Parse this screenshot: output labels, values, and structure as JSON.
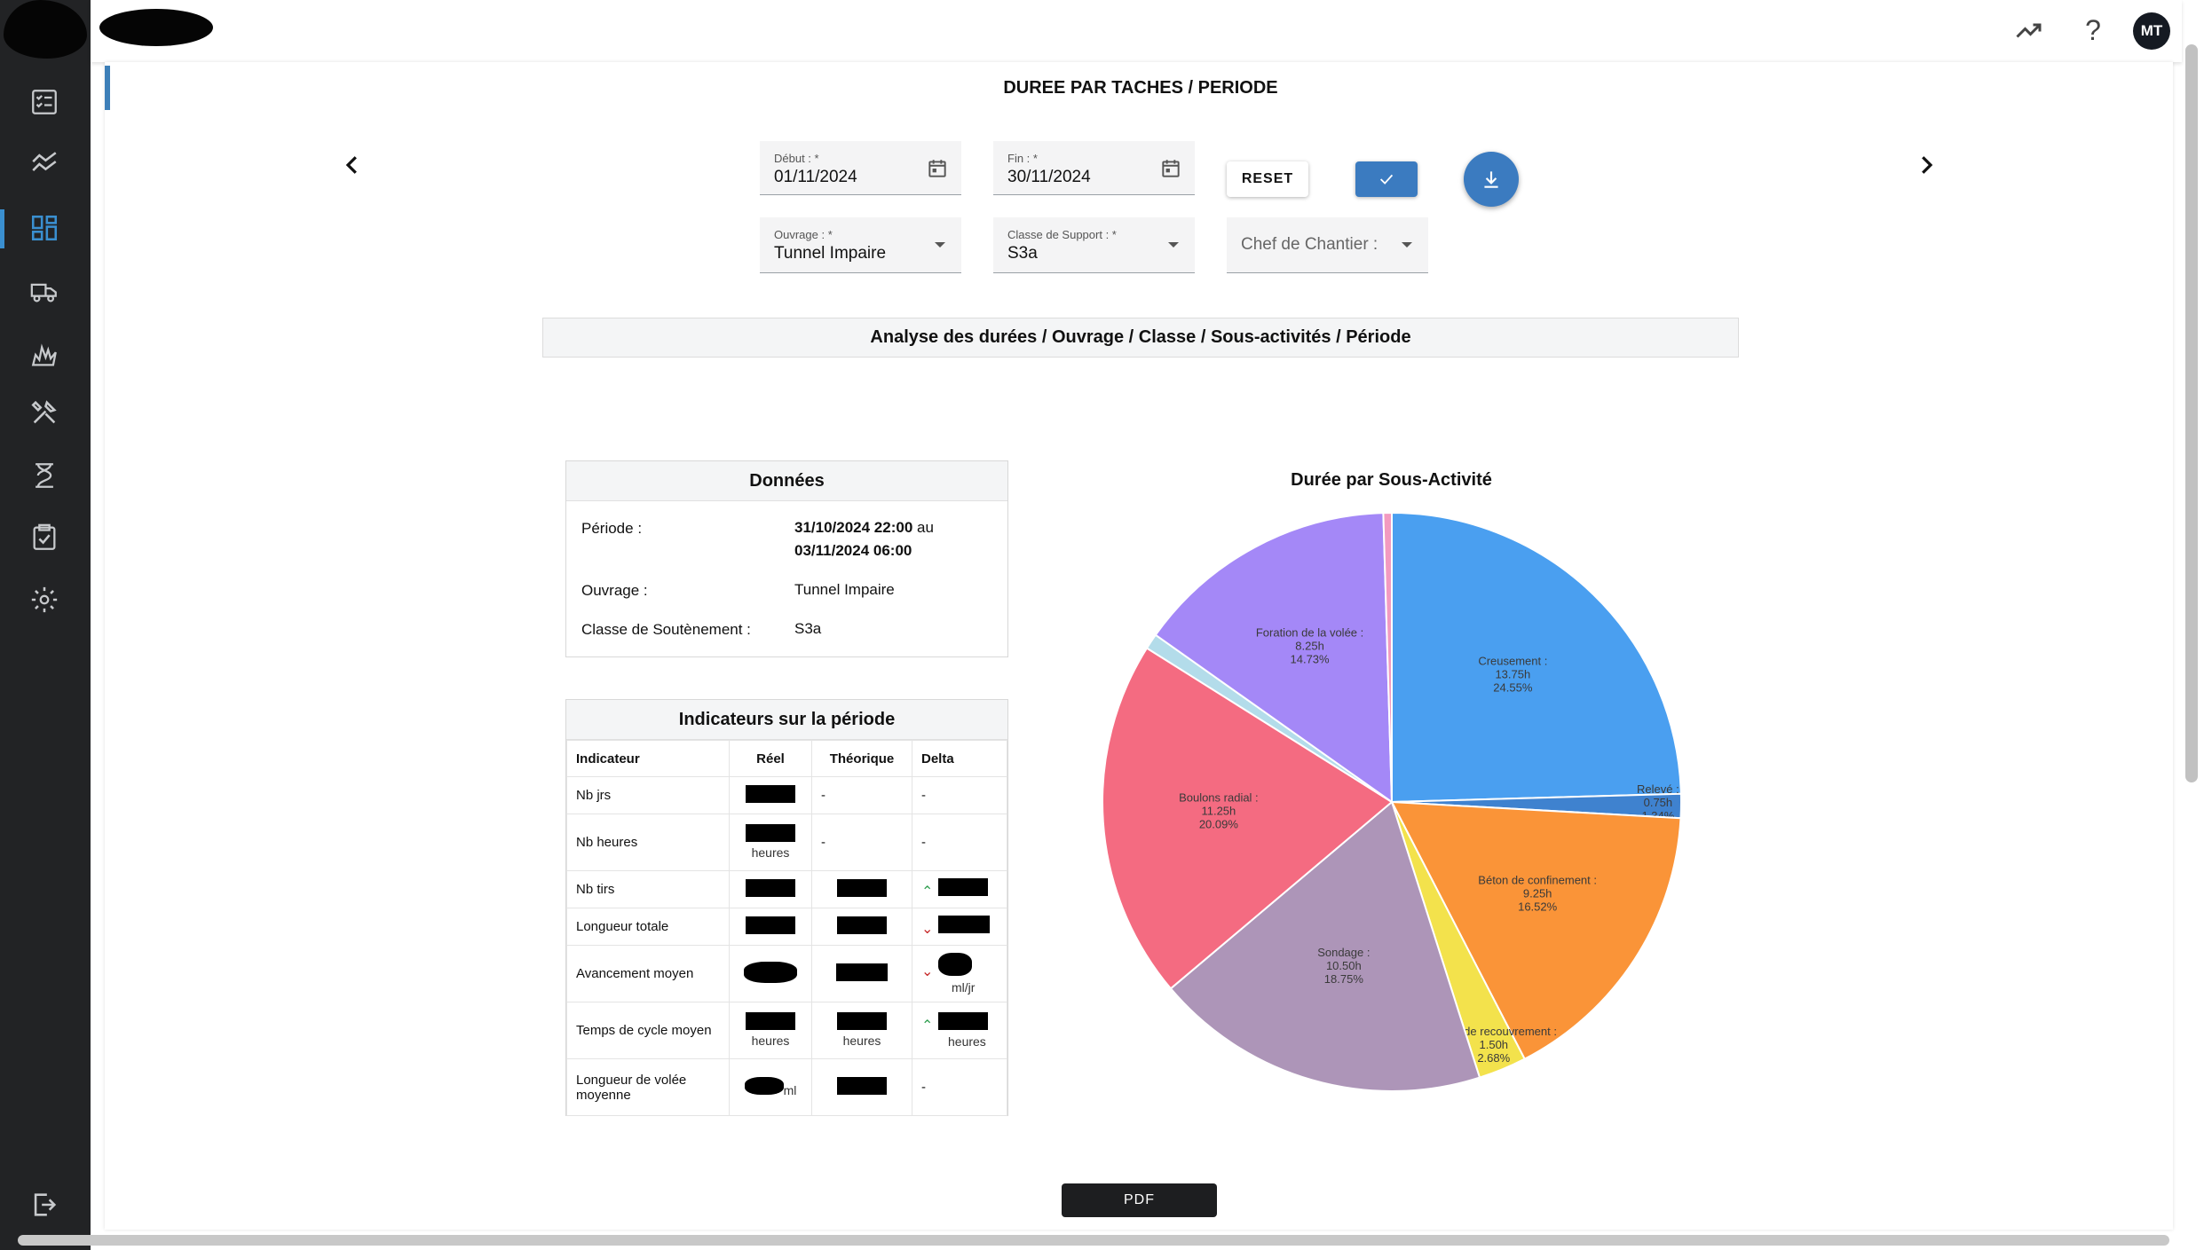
{
  "header": {
    "avatar_initials": "MT"
  },
  "sidebar": {
    "items": [
      {
        "icon": "checklist-icon"
      },
      {
        "icon": "trend-lines-icon"
      },
      {
        "icon": "dashboard-grid-icon"
      },
      {
        "icon": "truck-icon"
      },
      {
        "icon": "explosion-icon"
      },
      {
        "icon": "tools-icon"
      },
      {
        "icon": "hourglass-icon"
      },
      {
        "icon": "clipboard-check-icon"
      },
      {
        "icon": "gear-icon"
      }
    ],
    "active_index": 2,
    "logout_icon": "logout-icon"
  },
  "page": {
    "title": "DUREE PAR TACHES / PERIODE"
  },
  "filters": {
    "debut_label": "Début : *",
    "debut_value": "01/11/2024",
    "fin_label": "Fin : *",
    "fin_value": "30/11/2024",
    "ouvrage_label": "Ouvrage : *",
    "ouvrage_value": "Tunnel Impaire",
    "classe_label": "Classe de Support : *",
    "classe_value": "S3a",
    "chef_placeholder": "Chef de Chantier :",
    "reset_label": "RESET"
  },
  "section": {
    "title": "Analyse des durées / Ouvrage / Classe / Sous-activités / Période"
  },
  "donnees": {
    "title": "Données",
    "periode_label": "Période :",
    "periode_start": "31/10/2024 22:00",
    "periode_sep": " au",
    "periode_end": "03/11/2024 06:00",
    "ouvrage_label": "Ouvrage :",
    "ouvrage_value": "Tunnel Impaire",
    "classe_label": "Classe de Soutènement :",
    "classe_value": "S3a"
  },
  "indicateurs": {
    "title": "Indicateurs sur la période",
    "columns": [
      "Indicateur",
      "Réel",
      "Théorique",
      "Delta"
    ],
    "rows": [
      {
        "label": "Nb jrs",
        "theo": "-",
        "delta": "-"
      },
      {
        "label": "Nb heures",
        "reel_unit": "heures",
        "theo": "-",
        "delta": "-"
      },
      {
        "label": "Nb tirs"
      },
      {
        "label": "Longueur totale"
      },
      {
        "label": "Avancement moyen",
        "delta_unit": "ml/jr"
      },
      {
        "label": "Temps de cycle moyen",
        "reel_unit": "heures",
        "theo_unit": "heures",
        "delta_unit": "heures"
      },
      {
        "label": "Longueur de volée moyenne",
        "reel_unit": "ml",
        "delta": "-"
      }
    ]
  },
  "chart_data": {
    "type": "pie",
    "title": "Durée par Sous-Activité",
    "slices": [
      {
        "label": "Creusement :",
        "hours": "13.75h",
        "percent_text": "24.55%",
        "value": 24.55,
        "color": "#4a9ff0"
      },
      {
        "label": "Relevé :",
        "hours": "0.75h",
        "percent_text": "1.34%",
        "value": 1.34,
        "color": "#3f82cf"
      },
      {
        "label": "Béton de confinement :",
        "hours": "9.25h",
        "percent_text": "16.52%",
        "value": 16.52,
        "color": "#fa9438"
      },
      {
        "label": "Béton de recouvrement :",
        "hours": "1.50h",
        "percent_text": "2.68%",
        "value": 2.68,
        "color": "#f3e24c"
      },
      {
        "label": "Sondage :",
        "hours": "10.50h",
        "percent_text": "18.75%",
        "value": 18.75,
        "color": "#ad95b8"
      },
      {
        "label": "Boulons radial :",
        "hours": "11.25h",
        "percent_text": "20.09%",
        "value": 20.09,
        "color": "#f46b81"
      },
      {
        "label": "",
        "hours": "",
        "percent_text": "",
        "value": 0.87,
        "color": "#b3dcea"
      },
      {
        "label": "Foration de la volée :",
        "hours": "8.25h",
        "percent_text": "14.73%",
        "value": 14.73,
        "color": "#a488f7"
      },
      {
        "label": "",
        "hours": "",
        "percent_text": "",
        "value": 0.47,
        "color": "#f29ac0"
      }
    ]
  },
  "footer": {
    "pdf_label": "PDF"
  }
}
